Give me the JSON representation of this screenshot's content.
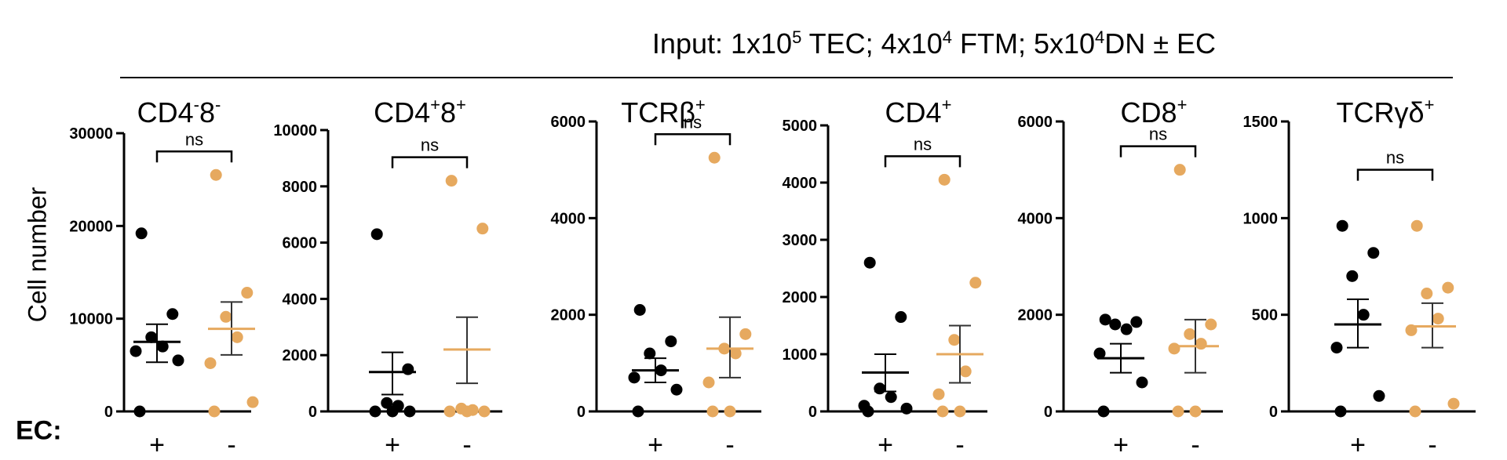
{
  "figure": {
    "title_parts": [
      "Input: 1x10",
      "5",
      " TEC; 4x10",
      "4",
      " FTM; 5x10",
      "4",
      "DN ± EC"
    ],
    "ylabel": "Cell number",
    "group_label_prefix": "EC:",
    "colors": {
      "with_ec": "#000000",
      "without_ec": "#E6A95F",
      "axis": "#000000"
    }
  },
  "chart_data": [
    {
      "type": "scatter",
      "title_main": "CD4",
      "title_parts": [
        "CD4",
        "-",
        "8",
        "-"
      ],
      "ylim": [
        0,
        30000
      ],
      "yticks": [
        0,
        10000,
        20000,
        30000
      ],
      "ytick_labels": [
        "0",
        "10000",
        "20000",
        "30000"
      ],
      "categories": [
        "+",
        "-"
      ],
      "significance": "ns",
      "series": [
        {
          "values": [
            19200,
            10500,
            8000,
            7000,
            6500,
            5500,
            0
          ],
          "mean": 7500,
          "sem_low": 5300,
          "sem_high": 9400
        },
        {
          "values": [
            25500,
            12800,
            10200,
            8000,
            5200,
            1000,
            0
          ],
          "mean": 8900,
          "sem_low": 6100,
          "sem_high": 11800
        }
      ]
    },
    {
      "type": "scatter",
      "title_parts": [
        "CD4",
        "+",
        "8",
        "+"
      ],
      "ylim": [
        0,
        10000
      ],
      "yticks": [
        0,
        2000,
        4000,
        6000,
        8000,
        10000
      ],
      "ytick_labels": [
        "0",
        "2000",
        "4000",
        "6000",
        "8000",
        "10000"
      ],
      "categories": [
        "+",
        "-"
      ],
      "significance": "ns",
      "series": [
        {
          "values": [
            6300,
            1500,
            300,
            200,
            0,
            0,
            0
          ],
          "mean": 1400,
          "sem_low": 600,
          "sem_high": 2100
        },
        {
          "values": [
            8200,
            6500,
            100,
            50,
            0,
            0,
            0
          ],
          "mean": 2200,
          "sem_low": 1000,
          "sem_high": 3350
        }
      ]
    },
    {
      "type": "scatter",
      "title_parts": [
        "TCRβ",
        "+"
      ],
      "ylim": [
        0,
        6000
      ],
      "yticks": [
        0,
        2000,
        4000,
        6000
      ],
      "ytick_labels": [
        "0",
        "2000",
        "4000",
        "6000"
      ],
      "categories": [
        "+",
        "-"
      ],
      "significance": "ns",
      "series": [
        {
          "values": [
            2100,
            1450,
            1200,
            850,
            700,
            450,
            0
          ],
          "mean": 850,
          "sem_low": 600,
          "sem_high": 1100
        },
        {
          "values": [
            5250,
            1600,
            1300,
            1200,
            600,
            0,
            0
          ],
          "mean": 1300,
          "sem_low": 700,
          "sem_high": 1950
        }
      ]
    },
    {
      "type": "scatter",
      "title_parts": [
        "CD4",
        "+"
      ],
      "ylim": [
        0,
        5000
      ],
      "yticks": [
        0,
        1000,
        2000,
        3000,
        4000,
        5000
      ],
      "ytick_labels": [
        "0",
        "1000",
        "2000",
        "3000",
        "4000",
        "5000"
      ],
      "categories": [
        "+",
        "-"
      ],
      "significance": "ns",
      "series": [
        {
          "values": [
            2600,
            1650,
            400,
            250,
            100,
            50,
            0
          ],
          "mean": 680,
          "sem_low": 350,
          "sem_high": 1000
        },
        {
          "values": [
            4050,
            2250,
            1250,
            700,
            300,
            0,
            0
          ],
          "mean": 1000,
          "sem_low": 500,
          "sem_high": 1500
        }
      ]
    },
    {
      "type": "scatter",
      "title_parts": [
        "CD8",
        "+"
      ],
      "ylim": [
        0,
        6000
      ],
      "yticks": [
        0,
        2000,
        4000,
        6000
      ],
      "ytick_labels": [
        "0",
        "2000",
        "4000",
        "6000"
      ],
      "categories": [
        "+",
        "-"
      ],
      "significance": "ns",
      "series": [
        {
          "values": [
            1900,
            1850,
            1800,
            1700,
            1200,
            600,
            0
          ],
          "mean": 1100,
          "sem_low": 800,
          "sem_high": 1400
        },
        {
          "values": [
            5000,
            1800,
            1600,
            1400,
            1300,
            0,
            0
          ],
          "mean": 1350,
          "sem_low": 800,
          "sem_high": 1900
        }
      ]
    },
    {
      "type": "scatter",
      "title_parts": [
        "TCRγδ",
        "+"
      ],
      "ylim": [
        0,
        1500
      ],
      "yticks": [
        0,
        500,
        1000,
        1500
      ],
      "ytick_labels": [
        "0",
        "500",
        "1000",
        "1500"
      ],
      "categories": [
        "+",
        "-"
      ],
      "significance": "ns",
      "series": [
        {
          "values": [
            960,
            820,
            700,
            500,
            330,
            80,
            0
          ],
          "mean": 450,
          "sem_low": 330,
          "sem_high": 580
        },
        {
          "values": [
            960,
            640,
            610,
            480,
            420,
            40,
            0
          ],
          "mean": 440,
          "sem_low": 330,
          "sem_high": 560
        }
      ]
    }
  ]
}
